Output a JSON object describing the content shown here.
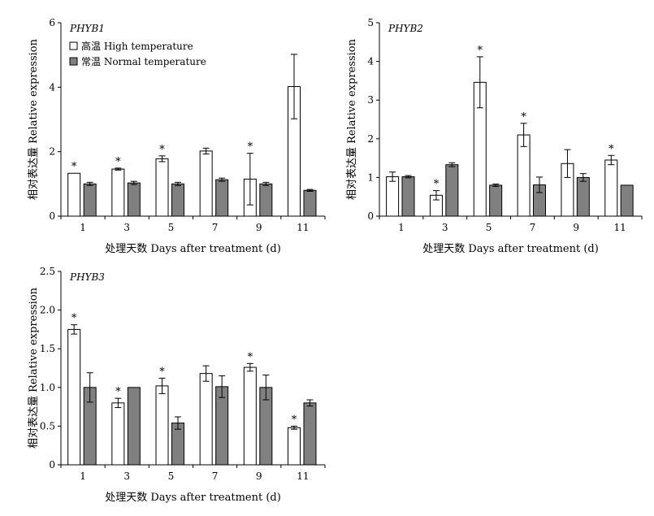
{
  "legend": {
    "high_label": "高温 High temperature",
    "normal_label": "常温 Normal temperature"
  },
  "colors": {
    "high_fill": "#ffffff",
    "normal_fill": "#808080",
    "stroke": "#000000"
  },
  "chart_data": [
    {
      "type": "bar",
      "title": "PHYB1",
      "xlabel": "处理天数 Days after treatment (d)",
      "ylabel": "相对表达量 Relative expression",
      "categories": [
        "1",
        "3",
        "5",
        "7",
        "9",
        "11"
      ],
      "ylim": [
        0,
        6
      ],
      "yticks": [
        "0",
        "2",
        "4",
        "6"
      ],
      "series": [
        {
          "name": "高温 High temperature",
          "values": [
            1.33,
            1.46,
            1.78,
            2.02,
            1.15,
            4.02
          ],
          "errors": [
            0.0,
            0.03,
            0.09,
            0.09,
            0.8,
            1.0
          ]
        },
        {
          "name": "常温 Normal temperature",
          "values": [
            1.0,
            1.03,
            1.0,
            1.13,
            1.0,
            0.8
          ],
          "errors": [
            0.05,
            0.05,
            0.05,
            0.05,
            0.05,
            0.03
          ]
        }
      ],
      "significance": [
        true,
        true,
        true,
        false,
        true,
        false
      ]
    },
    {
      "type": "bar",
      "title": "PHYB2",
      "xlabel": "处理天数 Days after treatment (d)",
      "ylabel": "相对表达量 Relative expression",
      "categories": [
        "1",
        "3",
        "5",
        "7",
        "9",
        "11"
      ],
      "ylim": [
        0,
        5
      ],
      "yticks": [
        "0",
        "1",
        "2",
        "3",
        "4",
        "5"
      ],
      "series": [
        {
          "name": "高温 High temperature",
          "values": [
            1.02,
            0.54,
            3.46,
            2.1,
            1.36,
            1.45
          ],
          "errors": [
            0.12,
            0.12,
            0.66,
            0.3,
            0.36,
            0.12
          ]
        },
        {
          "name": "常温 Normal temperature",
          "values": [
            1.02,
            1.33,
            0.8,
            0.81,
            1.0,
            0.8
          ],
          "errors": [
            0.03,
            0.05,
            0.03,
            0.2,
            0.1,
            0.0
          ]
        }
      ],
      "significance": [
        false,
        true,
        true,
        true,
        false,
        true
      ]
    },
    {
      "type": "bar",
      "title": "PHYB3",
      "xlabel": "处理天数 Days after treatment (d)",
      "ylabel": "相对表达量 Relative expression",
      "categories": [
        "1",
        "3",
        "5",
        "7",
        "9",
        "11"
      ],
      "ylim": [
        0,
        2.5
      ],
      "yticks": [
        "0",
        "0.5",
        "1.0",
        "1.5",
        "2.0",
        "2.5"
      ],
      "series": [
        {
          "name": "高温 High temperature",
          "values": [
            1.75,
            0.8,
            1.02,
            1.18,
            1.26,
            0.48
          ],
          "errors": [
            0.06,
            0.06,
            0.1,
            0.1,
            0.05,
            0.02
          ]
        },
        {
          "name": "常温 Normal temperature",
          "values": [
            1.0,
            1.0,
            0.54,
            1.01,
            1.0,
            0.8
          ],
          "errors": [
            0.19,
            0.0,
            0.08,
            0.14,
            0.16,
            0.04
          ]
        }
      ],
      "significance": [
        true,
        true,
        true,
        false,
        true,
        true
      ]
    }
  ]
}
